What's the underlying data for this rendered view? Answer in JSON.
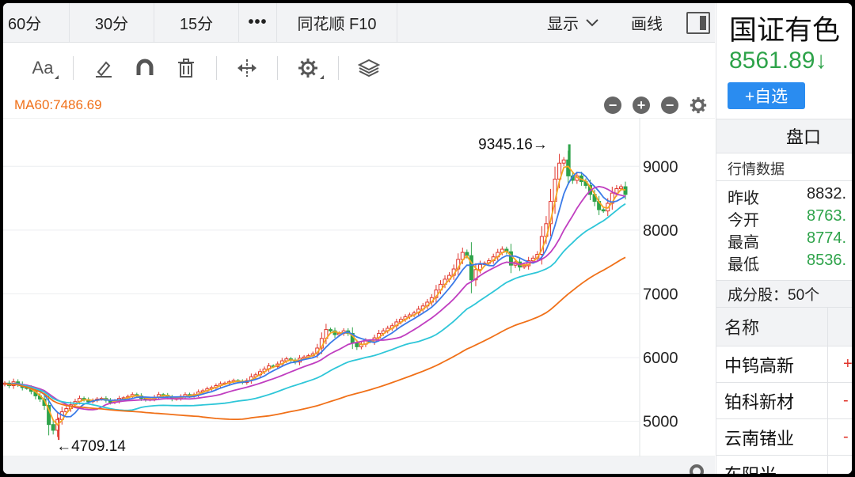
{
  "tabs": [
    "60分",
    "30分",
    "15分",
    "•••",
    "同花顺 F10"
  ],
  "header": {
    "show_label": "显示",
    "draw_label": "画线"
  },
  "toolbar": {
    "font_label": "Aa"
  },
  "ma_label": "MA60:7486.69",
  "chart_data": {
    "type": "candlestick",
    "y_ticks": [
      5000,
      6000,
      7000,
      8000,
      9000
    ],
    "ylim": [
      4450,
      9760
    ],
    "high_annotation": "9345.16→",
    "low_annotation": "←4709.14",
    "high_value": 9345.16,
    "low_value": 4709.14,
    "closes": [
      5600,
      5560,
      5620,
      5580,
      5530,
      5520,
      5470,
      5400,
      5350,
      5250,
      4950,
      4860,
      5030,
      5150,
      5200,
      5260,
      5310,
      5360,
      5340,
      5310,
      5330,
      5350,
      5360,
      5330,
      5300,
      5320,
      5360,
      5370,
      5390,
      5420,
      5400,
      5360,
      5340,
      5350,
      5380,
      5420,
      5410,
      5380,
      5350,
      5360,
      5390,
      5420,
      5400,
      5420,
      5460,
      5480,
      5510,
      5530,
      5560,
      5590,
      5600,
      5620,
      5640,
      5630,
      5610,
      5640,
      5700,
      5730,
      5780,
      5820,
      5870,
      5860,
      5900,
      5950,
      5980,
      5960,
      5930,
      5990,
      6010,
      6030,
      6060,
      6150,
      6300,
      6440,
      6420,
      6360,
      6380,
      6420,
      6380,
      6230,
      6170,
      6210,
      6260,
      6250,
      6310,
      6380,
      6420,
      6460,
      6500,
      6560,
      6600,
      6640,
      6670,
      6700,
      6760,
      6810,
      6870,
      6940,
      7060,
      7150,
      7230,
      7290,
      7390,
      7540,
      7650,
      7600,
      7220,
      7380,
      7460,
      7480,
      7520,
      7580,
      7650,
      7700,
      7660,
      7450,
      7500,
      7420,
      7440,
      7520,
      7560,
      7620,
      7900,
      8100,
      8450,
      8800,
      9050,
      9100,
      8850,
      8780,
      8850,
      8760,
      8700,
      8560,
      8450,
      8320,
      8300,
      8420,
      8580,
      8650,
      8680,
      8560
    ],
    "ma5_start": 5620,
    "ma10": [],
    "ma60_last": 7486.69
  },
  "panel": {
    "name": "国证有色",
    "price": "8561.89↓",
    "add_label": "+自选",
    "pankou_label": "盘口",
    "quote_title": "行情数据",
    "rows": [
      {
        "label": "昨收",
        "value": "8832.",
        "green": false
      },
      {
        "label": "今开",
        "value": "8763.",
        "green": true
      },
      {
        "label": "最高",
        "value": "8774.",
        "green": true
      },
      {
        "label": "最低",
        "value": "8536.",
        "green": true
      }
    ],
    "constituents": "成分股：50个",
    "list_header": "名称",
    "stocks": [
      "中钨高新",
      "铂科新材",
      "云南锗业",
      "东阳光"
    ]
  },
  "colors": {
    "up": "#e0342b",
    "down": "#2ea34a",
    "ma5": "#f5a623",
    "ma10": "#3b7be8",
    "ma20": "#c03ec0",
    "ma30": "#2ec6d8",
    "ma60": "#f07018",
    "accent": "#2a8cf0"
  }
}
